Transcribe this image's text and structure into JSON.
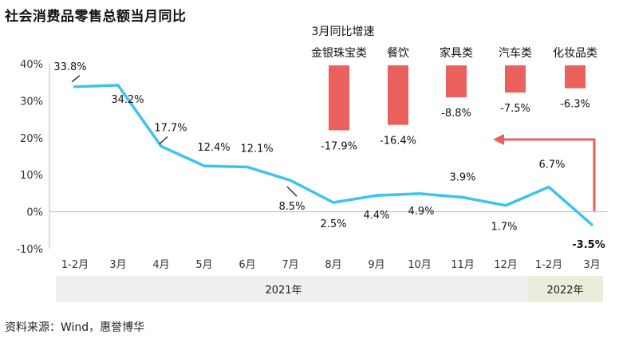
{
  "title": "社会消费品零售总额当月同比",
  "source": "资料来源：Wind，惠誉博华",
  "colors": {
    "line": "#3ec3f0",
    "bar": "#e9605c",
    "arrow": "#e9605c",
    "band_2021": "#efefef",
    "band_2022": "#e9eedb",
    "axis": "#bdbdbd"
  },
  "chart_data": [
    {
      "type": "line",
      "title": "社会消费品零售总额当月同比",
      "categories": [
        "1-2月",
        "3月",
        "4月",
        "5月",
        "6月",
        "7月",
        "8月",
        "9月",
        "10月",
        "11月",
        "12月",
        "1-2月",
        "3月"
      ],
      "groups": [
        {
          "label": "2021年",
          "start": 0,
          "end": 10
        },
        {
          "label": "2022年",
          "start": 11,
          "end": 12
        }
      ],
      "series": [
        {
          "values": [
            33.8,
            34.2,
            17.7,
            12.4,
            12.1,
            8.5,
            2.5,
            4.4,
            4.9,
            3.9,
            1.7,
            6.7,
            -3.5
          ],
          "labels": [
            "33.8%",
            "34.2%",
            "17.7%",
            "12.4%",
            "12.1%",
            "8.5%",
            "2.5%",
            "4.4%",
            "4.9%",
            "3.9%",
            "1.7%",
            "6.7%",
            "-3.5%"
          ]
        }
      ],
      "y_ticks": [
        "40%",
        "30%",
        "20%",
        "10%",
        "0%",
        "-10%"
      ],
      "y_tick_values": [
        40,
        30,
        20,
        10,
        0,
        -10
      ],
      "ylim": [
        -10,
        40
      ],
      "grid": false,
      "xlabel": "",
      "ylabel": ""
    },
    {
      "type": "bar",
      "title": "3月同比增速",
      "categories": [
        "金银珠宝类",
        "餐饮",
        "家具类",
        "汽车类",
        "化妆品类"
      ],
      "values": [
        -17.9,
        -16.4,
        -8.8,
        -7.5,
        -6.3
      ],
      "labels": [
        "-17.9%",
        "-16.4%",
        "-8.8%",
        "-7.5%",
        "-6.3%"
      ],
      "ylim": [
        -25,
        0
      ]
    }
  ]
}
